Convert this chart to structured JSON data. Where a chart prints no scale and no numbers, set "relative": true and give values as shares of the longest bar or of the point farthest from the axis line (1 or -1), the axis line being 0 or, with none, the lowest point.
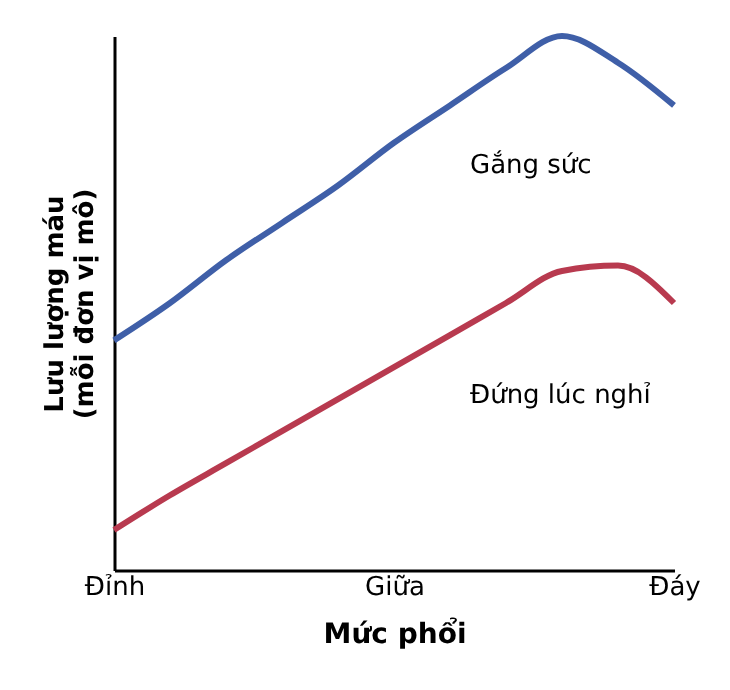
{
  "chart_data": {
    "type": "line",
    "relative": true,
    "xlabel": "Mức phổi",
    "ylabel": "Lưu lượng máu\n(mỗi đơn vị mô)",
    "categories": [
      "Đỉnh",
      null,
      null,
      null,
      null,
      "Giữa",
      null,
      null,
      null,
      null,
      "Đáy"
    ],
    "grid": false,
    "marker": "none",
    "line_style": "solid",
    "series": [
      {
        "name": "Gắng sức",
        "color": "#3f5fa8",
        "values": [
          0.43,
          0.5,
          0.58,
          0.65,
          0.72,
          0.8,
          0.87,
          0.94,
          1.0,
          0.95,
          0.87
        ]
      },
      {
        "name": "Đứng lúc nghỉ",
        "color": "#b83a4f",
        "values": [
          0.075,
          0.14,
          0.2,
          0.26,
          0.32,
          0.38,
          0.44,
          0.5,
          0.56,
          0.57,
          0.5
        ]
      }
    ]
  }
}
